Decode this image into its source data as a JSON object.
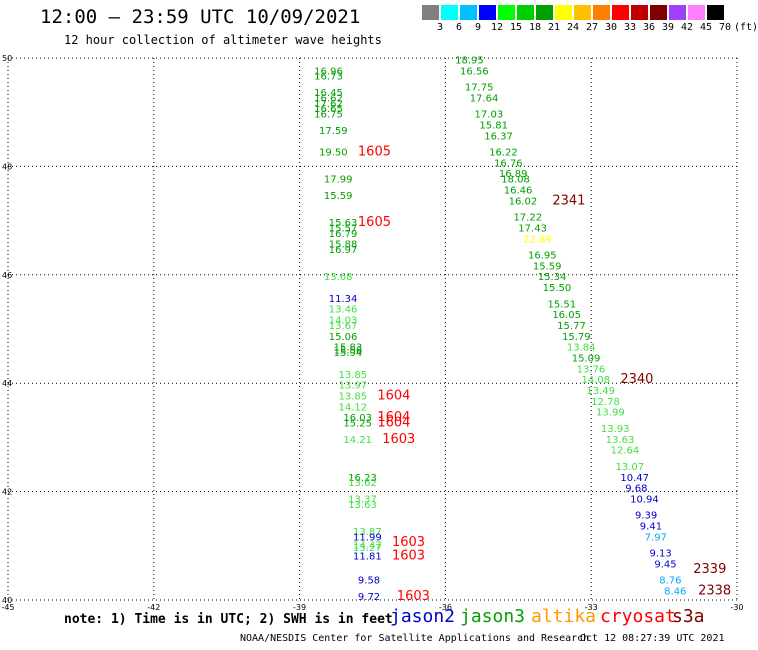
{
  "title": "12:00 — 23:59 UTC 10/09/2021",
  "subtitle": "12 hour collection of altimeter wave heights",
  "legend": {
    "colors": [
      "#808080",
      "#00ffff",
      "#00c0ff",
      "#0000ff",
      "#00ff00",
      "#00d000",
      "#00a000",
      "#ffff00",
      "#ffc000",
      "#ff8000",
      "#ff0000",
      "#c00000",
      "#800000",
      "#a040ff",
      "#ff80ff",
      "#000000"
    ],
    "labels": [
      "3",
      "6",
      "9",
      "12",
      "15",
      "18",
      "21",
      "24",
      "27",
      "30",
      "33",
      "36",
      "39",
      "42",
      "45",
      "70",
      "(ft)"
    ]
  },
  "note": "note: 1) Time is in UTC; 2) SWH is in feet",
  "satellites": [
    {
      "name": "jason2",
      "color": "#0000cc"
    },
    {
      "name": "jason3",
      "color": "#00a000"
    },
    {
      "name": "altika",
      "color": "#ff9900"
    },
    {
      "name": "cryosat",
      "color": "#ff0000"
    },
    {
      "name": "s3a",
      "color": "#800000"
    }
  ],
  "footer": "NOAA/NESDIS Center for Satellite Applications and Research",
  "timestamp": "Oct 12 08:27:39 UTC 2021",
  "chart_data": {
    "type": "scatter",
    "xlim": [
      -45,
      -30
    ],
    "ylim": [
      40,
      50
    ],
    "xticks": [
      "-45",
      "-42",
      "-39",
      "-36",
      "-33",
      "-30"
    ],
    "yticks": [
      "50",
      "48",
      "46",
      "44",
      "42",
      "40"
    ],
    "grid": true,
    "points": [
      {
        "lon": -38.7,
        "lat": 49.7,
        "label": "16.96",
        "color": "#00a000"
      },
      {
        "lon": -38.7,
        "lat": 49.6,
        "label": "16.73",
        "color": "#00a000"
      },
      {
        "lon": -38.7,
        "lat": 49.3,
        "label": "16.45",
        "color": "#00a000"
      },
      {
        "lon": -38.7,
        "lat": 49.2,
        "label": "16.62",
        "color": "#00a000"
      },
      {
        "lon": -38.7,
        "lat": 49.1,
        "label": "17.62",
        "color": "#00a000"
      },
      {
        "lon": -38.7,
        "lat": 49.0,
        "label": "16.65",
        "color": "#00a000"
      },
      {
        "lon": -38.7,
        "lat": 48.9,
        "label": "16.75",
        "color": "#00a000"
      },
      {
        "lon": -38.6,
        "lat": 48.6,
        "label": "17.59",
        "color": "#00a000"
      },
      {
        "lon": -38.6,
        "lat": 48.2,
        "label": "19.50",
        "color": "#00a000"
      },
      {
        "lon": -37.8,
        "lat": 48.2,
        "label": "1605",
        "color": "#ff0000"
      },
      {
        "lon": -38.5,
        "lat": 47.7,
        "label": "17.99",
        "color": "#00a000"
      },
      {
        "lon": -38.5,
        "lat": 47.4,
        "label": "15.59",
        "color": "#00a000"
      },
      {
        "lon": -38.4,
        "lat": 46.9,
        "label": "15.63",
        "color": "#00a000"
      },
      {
        "lon": -38.4,
        "lat": 46.8,
        "label": "15.57",
        "color": "#00a000"
      },
      {
        "lon": -37.8,
        "lat": 46.9,
        "label": "1605",
        "color": "#ff0000"
      },
      {
        "lon": -38.4,
        "lat": 46.7,
        "label": "16.79",
        "color": "#00a000"
      },
      {
        "lon": -38.4,
        "lat": 46.5,
        "label": "15.88",
        "color": "#00a000"
      },
      {
        "lon": -38.4,
        "lat": 46.4,
        "label": "16.97",
        "color": "#00a000"
      },
      {
        "lon": -38.5,
        "lat": 45.9,
        "label": "13.68",
        "color": "#40e040"
      },
      {
        "lon": -38.4,
        "lat": 45.5,
        "label": "11.34",
        "color": "#0000cc"
      },
      {
        "lon": -38.4,
        "lat": 45.3,
        "label": "13.46",
        "color": "#40e040"
      },
      {
        "lon": -38.4,
        "lat": 45.1,
        "label": "14.03",
        "color": "#40e040"
      },
      {
        "lon": -38.4,
        "lat": 45.0,
        "label": "13.67",
        "color": "#40e040"
      },
      {
        "lon": -38.4,
        "lat": 44.8,
        "label": "15.06",
        "color": "#00a000"
      },
      {
        "lon": -38.3,
        "lat": 44.6,
        "label": "15.83",
        "color": "#00a000"
      },
      {
        "lon": -38.3,
        "lat": 44.55,
        "label": "15.56",
        "color": "#00a000"
      },
      {
        "lon": -38.3,
        "lat": 44.5,
        "label": "15.94",
        "color": "#00a000"
      },
      {
        "lon": -38.2,
        "lat": 44.1,
        "label": "13.85",
        "color": "#40e040"
      },
      {
        "lon": -38.2,
        "lat": 43.9,
        "label": "13.97",
        "color": "#40e040"
      },
      {
        "lon": -38.2,
        "lat": 43.7,
        "label": "13.85",
        "color": "#40e040"
      },
      {
        "lon": -37.4,
        "lat": 43.7,
        "label": "1604",
        "color": "#ff0000"
      },
      {
        "lon": -38.2,
        "lat": 43.5,
        "label": "14.12",
        "color": "#40e040"
      },
      {
        "lon": -38.1,
        "lat": 43.3,
        "label": "16.03",
        "color": "#00a000"
      },
      {
        "lon": -37.4,
        "lat": 43.3,
        "label": "1604",
        "color": "#ff0000"
      },
      {
        "lon": -38.1,
        "lat": 43.2,
        "label": "15.25",
        "color": "#00a000"
      },
      {
        "lon": -37.4,
        "lat": 43.2,
        "label": "1604",
        "color": "#ff0000"
      },
      {
        "lon": -38.1,
        "lat": 42.9,
        "label": "14.21",
        "color": "#40e040"
      },
      {
        "lon": -37.3,
        "lat": 42.9,
        "label": "1603",
        "color": "#ff0000"
      },
      {
        "lon": -38.0,
        "lat": 42.2,
        "label": "16.23",
        "color": "#00a000"
      },
      {
        "lon": -38.0,
        "lat": 42.1,
        "label": "13.62",
        "color": "#40e040"
      },
      {
        "lon": -38.0,
        "lat": 41.8,
        "label": "13.37",
        "color": "#40e040"
      },
      {
        "lon": -38.0,
        "lat": 41.7,
        "label": "13.63",
        "color": "#40e040"
      },
      {
        "lon": -37.9,
        "lat": 41.2,
        "label": "13.87",
        "color": "#40e040"
      },
      {
        "lon": -37.9,
        "lat": 41.1,
        "label": "11.99",
        "color": "#0000cc"
      },
      {
        "lon": -37.9,
        "lat": 40.95,
        "label": "14.47",
        "color": "#40e040"
      },
      {
        "lon": -37.9,
        "lat": 40.9,
        "label": "13.27",
        "color": "#40e040"
      },
      {
        "lon": -37.1,
        "lat": 41.0,
        "label": "1603",
        "color": "#ff0000"
      },
      {
        "lon": -37.9,
        "lat": 40.75,
        "label": "11.81",
        "color": "#0000cc"
      },
      {
        "lon": -37.1,
        "lat": 40.75,
        "label": "1603",
        "color": "#ff0000"
      },
      {
        "lon": -37.8,
        "lat": 40.3,
        "label": "9.58",
        "color": "#0000cc"
      },
      {
        "lon": -37.8,
        "lat": 40.0,
        "label": "9.72",
        "color": "#0000cc"
      },
      {
        "lon": -37.0,
        "lat": 40.0,
        "label": "1603",
        "color": "#ff0000"
      },
      {
        "lon": -35.8,
        "lat": 49.9,
        "label": "18.95",
        "color": "#00a000"
      },
      {
        "lon": -35.7,
        "lat": 49.7,
        "label": "16.56",
        "color": "#00a000"
      },
      {
        "lon": -35.6,
        "lat": 49.4,
        "label": "17.75",
        "color": "#00a000"
      },
      {
        "lon": -35.5,
        "lat": 49.2,
        "label": "17.64",
        "color": "#00a000"
      },
      {
        "lon": -35.4,
        "lat": 48.9,
        "label": "17.03",
        "color": "#00a000"
      },
      {
        "lon": -35.3,
        "lat": 48.7,
        "label": "15.81",
        "color": "#00a000"
      },
      {
        "lon": -35.2,
        "lat": 48.5,
        "label": "16.37",
        "color": "#00a000"
      },
      {
        "lon": -35.1,
        "lat": 48.2,
        "label": "16.22",
        "color": "#00a000"
      },
      {
        "lon": -35.0,
        "lat": 48.0,
        "label": "16.76",
        "color": "#00a000"
      },
      {
        "lon": -34.9,
        "lat": 47.8,
        "label": "16.89",
        "color": "#00a000"
      },
      {
        "lon": -34.85,
        "lat": 47.7,
        "label": "18.08",
        "color": "#00a000"
      },
      {
        "lon": -34.8,
        "lat": 47.5,
        "label": "16.46",
        "color": "#00a000"
      },
      {
        "lon": -34.7,
        "lat": 47.3,
        "label": "16.02",
        "color": "#00a000"
      },
      {
        "lon": -33.8,
        "lat": 47.3,
        "label": "2341",
        "color": "#800000"
      },
      {
        "lon": -34.6,
        "lat": 47.0,
        "label": "17.22",
        "color": "#00a000"
      },
      {
        "lon": -34.5,
        "lat": 46.8,
        "label": "17.43",
        "color": "#00a000"
      },
      {
        "lon": -34.4,
        "lat": 46.6,
        "label": "22.89",
        "color": "#ffff00"
      },
      {
        "lon": -34.3,
        "lat": 46.3,
        "label": "16.95",
        "color": "#00a000"
      },
      {
        "lon": -34.2,
        "lat": 46.1,
        "label": "15.59",
        "color": "#00a000"
      },
      {
        "lon": -34.1,
        "lat": 45.9,
        "label": "15.34",
        "color": "#00a000"
      },
      {
        "lon": -34.0,
        "lat": 45.7,
        "label": "15.50",
        "color": "#00a000"
      },
      {
        "lon": -33.9,
        "lat": 45.4,
        "label": "15.51",
        "color": "#00a000"
      },
      {
        "lon": -33.8,
        "lat": 45.2,
        "label": "16.05",
        "color": "#00a000"
      },
      {
        "lon": -33.7,
        "lat": 45.0,
        "label": "15.77",
        "color": "#00a000"
      },
      {
        "lon": -33.6,
        "lat": 44.8,
        "label": "15.79",
        "color": "#00a000"
      },
      {
        "lon": -33.5,
        "lat": 44.6,
        "label": "13.84",
        "color": "#40e040"
      },
      {
        "lon": -33.4,
        "lat": 44.4,
        "label": "15.09",
        "color": "#00a000"
      },
      {
        "lon": -33.3,
        "lat": 44.2,
        "label": "13.76",
        "color": "#40e040"
      },
      {
        "lon": -33.2,
        "lat": 44.0,
        "label": "14.08",
        "color": "#40e040"
      },
      {
        "lon": -32.4,
        "lat": 44.0,
        "label": "2340",
        "color": "#800000"
      },
      {
        "lon": -33.1,
        "lat": 43.8,
        "label": "13.49",
        "color": "#40e040"
      },
      {
        "lon": -33.0,
        "lat": 43.6,
        "label": "12.78",
        "color": "#40e040"
      },
      {
        "lon": -32.9,
        "lat": 43.4,
        "label": "13.99",
        "color": "#40e040"
      },
      {
        "lon": -32.8,
        "lat": 43.1,
        "label": "13.93",
        "color": "#40e040"
      },
      {
        "lon": -32.7,
        "lat": 42.9,
        "label": "13.63",
        "color": "#40e040"
      },
      {
        "lon": -32.6,
        "lat": 42.7,
        "label": "12.64",
        "color": "#40e040"
      },
      {
        "lon": -32.5,
        "lat": 42.4,
        "label": "13.07",
        "color": "#40e040"
      },
      {
        "lon": -32.4,
        "lat": 42.2,
        "label": "10.47",
        "color": "#0000cc"
      },
      {
        "lon": -32.3,
        "lat": 42.0,
        "label": "9.68",
        "color": "#0000cc"
      },
      {
        "lon": -32.2,
        "lat": 41.8,
        "label": "10.94",
        "color": "#0000cc"
      },
      {
        "lon": -32.1,
        "lat": 41.5,
        "label": "9.39",
        "color": "#0000cc"
      },
      {
        "lon": -32.0,
        "lat": 41.3,
        "label": "9.41",
        "color": "#0000cc"
      },
      {
        "lon": -31.9,
        "lat": 41.1,
        "label": "7.97",
        "color": "#00aaff"
      },
      {
        "lon": -31.8,
        "lat": 40.8,
        "label": "9.13",
        "color": "#0000cc"
      },
      {
        "lon": -31.7,
        "lat": 40.6,
        "label": "9.45",
        "color": "#0000cc"
      },
      {
        "lon": -30.9,
        "lat": 40.5,
        "label": "2339",
        "color": "#800000"
      },
      {
        "lon": -31.6,
        "lat": 40.3,
        "label": "8.76",
        "color": "#00aaff"
      },
      {
        "lon": -31.5,
        "lat": 40.1,
        "label": "8.46",
        "color": "#00aaff"
      },
      {
        "lon": -30.8,
        "lat": 40.1,
        "label": "2338",
        "color": "#800000"
      }
    ]
  }
}
